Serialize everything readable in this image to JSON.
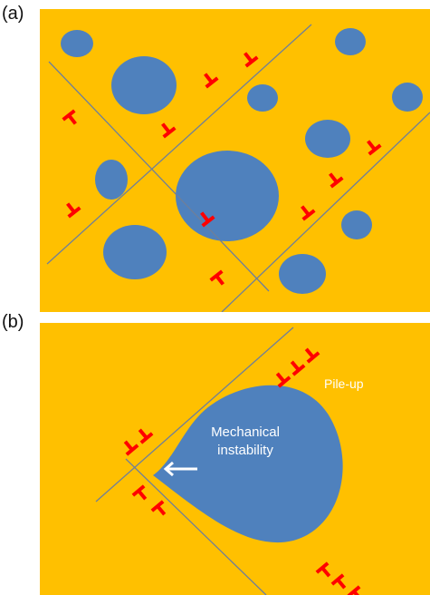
{
  "panels": [
    {
      "label": "(a)"
    },
    {
      "label": "(b)",
      "annotations": {
        "pileup": "Pile-up",
        "instability_line1": "Mechanical",
        "instability_line2": "instability"
      }
    }
  ],
  "colors": {
    "background": "#FFC000",
    "particle": "#4F81BD",
    "slip_line": "#6F7F99",
    "dislocation": "#FF0000",
    "text": "#FFFFFF"
  },
  "icons": {
    "dislocation": "dislocation-symbol-icon",
    "arrow": "arrow-left-icon"
  }
}
